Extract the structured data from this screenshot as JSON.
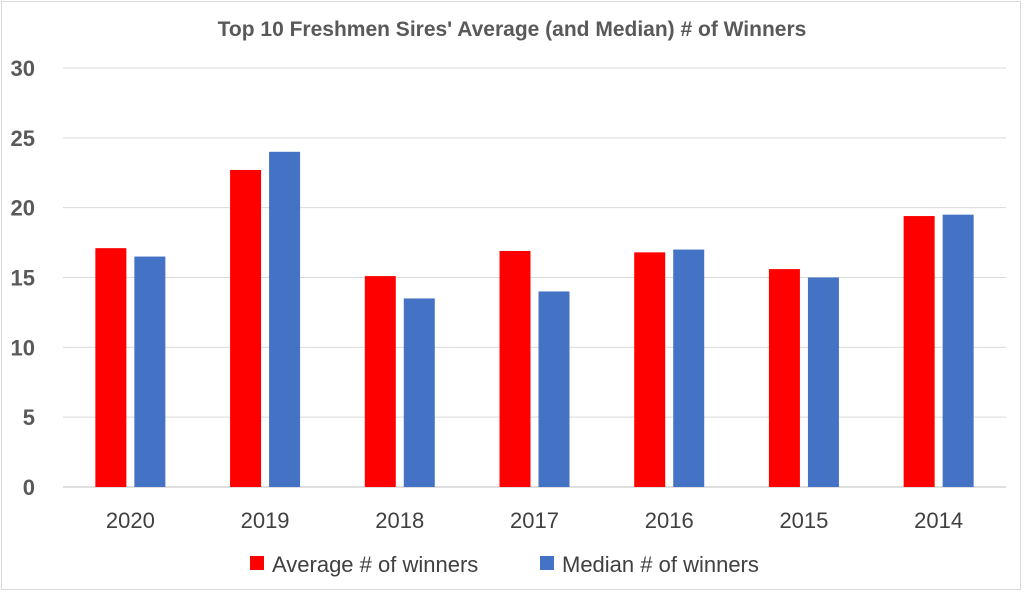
{
  "chart_data": {
    "type": "bar",
    "title": "Top 10 Freshmen Sires' Average (and Median) # of Winners",
    "xlabel": "",
    "ylabel": "",
    "categories": [
      "2020",
      "2019",
      "2018",
      "2017",
      "2016",
      "2015",
      "2014"
    ],
    "series": [
      {
        "name": "Average # of winners",
        "color": "#ff0000",
        "values": [
          17.1,
          22.7,
          15.1,
          16.9,
          16.8,
          15.6,
          19.4
        ]
      },
      {
        "name": "Median # of winners",
        "color": "#4472c4",
        "values": [
          16.5,
          24,
          13.5,
          14,
          17,
          15,
          19.5
        ]
      }
    ],
    "ylim": [
      0,
      30
    ],
    "yticks": [
      0,
      5,
      10,
      15,
      20,
      25,
      30
    ],
    "grid": true,
    "legend_position": "bottom"
  }
}
